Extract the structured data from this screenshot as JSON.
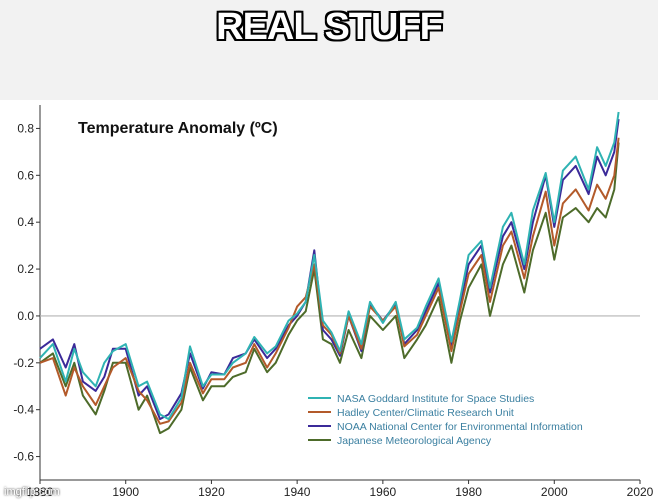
{
  "meme": {
    "caption": "REAL STUFF",
    "watermark": "imgflip.com"
  },
  "chart_data": {
    "type": "line",
    "title": "Temperature Anomaly (ºC)",
    "xlabel": "",
    "ylabel": "",
    "xlim": [
      1880,
      2020
    ],
    "ylim": [
      -0.7,
      0.9
    ],
    "xticks": [
      1880,
      1900,
      1920,
      1940,
      1960,
      1980,
      2000,
      2020
    ],
    "yticks": [
      0.8,
      0.6,
      0.4,
      0.2,
      0.0,
      -0.2,
      -0.4,
      -0.6
    ],
    "ytick_labels": [
      "0.8",
      "0.6",
      "0.4",
      "0.2",
      "0.0",
      "-0.2",
      "-0.4",
      "-0.6"
    ],
    "legend_position": "bottom-right",
    "series": [
      {
        "name": "NASA Goddard Institute for Space Studies",
        "color": "#2fb3b3",
        "x": [
          1880,
          1883,
          1886,
          1888,
          1890,
          1893,
          1895,
          1897,
          1900,
          1903,
          1905,
          1908,
          1910,
          1913,
          1915,
          1918,
          1920,
          1923,
          1925,
          1928,
          1930,
          1933,
          1935,
          1938,
          1940,
          1942,
          1944,
          1946,
          1948,
          1950,
          1952,
          1955,
          1957,
          1960,
          1963,
          1965,
          1968,
          1970,
          1973,
          1976,
          1978,
          1980,
          1983,
          1985,
          1988,
          1990,
          1993,
          1995,
          1998,
          2000,
          2002,
          2005,
          2008,
          2010,
          2012,
          2014,
          2015
        ],
        "values": [
          -0.18,
          -0.12,
          -0.28,
          -0.14,
          -0.24,
          -0.3,
          -0.2,
          -0.15,
          -0.12,
          -0.3,
          -0.28,
          -0.42,
          -0.44,
          -0.35,
          -0.13,
          -0.3,
          -0.25,
          -0.25,
          -0.2,
          -0.16,
          -0.09,
          -0.16,
          -0.13,
          -0.02,
          0.01,
          0.06,
          0.26,
          -0.02,
          -0.07,
          -0.15,
          0.02,
          -0.12,
          0.06,
          -0.03,
          0.06,
          -0.1,
          -0.05,
          0.04,
          0.16,
          -0.11,
          0.07,
          0.26,
          0.32,
          0.12,
          0.38,
          0.44,
          0.22,
          0.45,
          0.61,
          0.4,
          0.62,
          0.68,
          0.54,
          0.72,
          0.64,
          0.74,
          0.87
        ]
      },
      {
        "name": "Hadley Center/Climatic Research Unit",
        "color": "#b35a2a",
        "x": [
          1880,
          1883,
          1886,
          1888,
          1890,
          1893,
          1895,
          1897,
          1900,
          1903,
          1905,
          1908,
          1910,
          1913,
          1915,
          1918,
          1920,
          1923,
          1925,
          1928,
          1930,
          1933,
          1935,
          1938,
          1940,
          1942,
          1944,
          1946,
          1948,
          1950,
          1952,
          1955,
          1957,
          1960,
          1963,
          1965,
          1968,
          1970,
          1973,
          1976,
          1978,
          1980,
          1983,
          1985,
          1988,
          1990,
          1993,
          1995,
          1998,
          2000,
          2002,
          2005,
          2008,
          2010,
          2012,
          2014,
          2015
        ],
        "values": [
          -0.2,
          -0.18,
          -0.34,
          -0.22,
          -0.3,
          -0.38,
          -0.3,
          -0.22,
          -0.18,
          -0.32,
          -0.36,
          -0.46,
          -0.45,
          -0.37,
          -0.2,
          -0.33,
          -0.27,
          -0.27,
          -0.22,
          -0.2,
          -0.12,
          -0.22,
          -0.16,
          -0.05,
          0.04,
          0.08,
          0.22,
          -0.04,
          -0.08,
          -0.16,
          0.0,
          -0.14,
          0.04,
          -0.02,
          0.04,
          -0.13,
          -0.08,
          0.0,
          0.12,
          -0.15,
          0.02,
          0.18,
          0.26,
          0.06,
          0.3,
          0.36,
          0.16,
          0.34,
          0.53,
          0.3,
          0.48,
          0.54,
          0.45,
          0.56,
          0.5,
          0.6,
          0.76
        ]
      },
      {
        "name": "NOAA National Center for Environmental Information",
        "color": "#3b2a99",
        "x": [
          1880,
          1883,
          1886,
          1888,
          1890,
          1893,
          1895,
          1897,
          1900,
          1903,
          1905,
          1908,
          1910,
          1913,
          1915,
          1918,
          1920,
          1923,
          1925,
          1928,
          1930,
          1933,
          1935,
          1938,
          1940,
          1942,
          1944,
          1946,
          1948,
          1950,
          1952,
          1955,
          1957,
          1960,
          1963,
          1965,
          1968,
          1970,
          1973,
          1976,
          1978,
          1980,
          1983,
          1985,
          1988,
          1990,
          1993,
          1995,
          1998,
          2000,
          2002,
          2005,
          2008,
          2010,
          2012,
          2014,
          2015
        ],
        "values": [
          -0.14,
          -0.1,
          -0.22,
          -0.12,
          -0.28,
          -0.32,
          -0.26,
          -0.14,
          -0.14,
          -0.34,
          -0.3,
          -0.44,
          -0.42,
          -0.33,
          -0.16,
          -0.31,
          -0.24,
          -0.25,
          -0.18,
          -0.16,
          -0.1,
          -0.18,
          -0.14,
          -0.04,
          0.0,
          0.06,
          0.28,
          -0.06,
          -0.1,
          -0.17,
          0.0,
          -0.15,
          0.05,
          -0.02,
          0.05,
          -0.12,
          -0.06,
          0.02,
          0.14,
          -0.13,
          0.05,
          0.22,
          0.3,
          0.1,
          0.34,
          0.4,
          0.2,
          0.4,
          0.6,
          0.38,
          0.58,
          0.64,
          0.52,
          0.68,
          0.6,
          0.7,
          0.84
        ]
      },
      {
        "name": "Japanese Meteorological Agency",
        "color": "#4d6b2a",
        "x": [
          1880,
          1883,
          1886,
          1888,
          1890,
          1893,
          1895,
          1897,
          1900,
          1903,
          1905,
          1908,
          1910,
          1913,
          1915,
          1918,
          1920,
          1923,
          1925,
          1928,
          1930,
          1933,
          1935,
          1938,
          1940,
          1942,
          1944,
          1946,
          1948,
          1950,
          1952,
          1955,
          1957,
          1960,
          1963,
          1965,
          1968,
          1970,
          1973,
          1976,
          1978,
          1980,
          1983,
          1985,
          1988,
          1990,
          1993,
          1995,
          1998,
          2000,
          2002,
          2005,
          2008,
          2010,
          2012,
          2014,
          2015
        ],
        "values": [
          -0.2,
          -0.16,
          -0.3,
          -0.2,
          -0.34,
          -0.42,
          -0.32,
          -0.2,
          -0.2,
          -0.4,
          -0.34,
          -0.5,
          -0.48,
          -0.4,
          -0.22,
          -0.36,
          -0.3,
          -0.3,
          -0.26,
          -0.24,
          -0.14,
          -0.24,
          -0.2,
          -0.08,
          -0.02,
          0.02,
          0.2,
          -0.1,
          -0.12,
          -0.2,
          -0.06,
          -0.18,
          0.0,
          -0.06,
          0.0,
          -0.18,
          -0.1,
          -0.04,
          0.08,
          -0.2,
          -0.02,
          0.12,
          0.22,
          0.0,
          0.22,
          0.3,
          0.1,
          0.28,
          0.44,
          0.24,
          0.42,
          0.46,
          0.4,
          0.46,
          0.42,
          0.54,
          0.74
        ]
      }
    ]
  }
}
